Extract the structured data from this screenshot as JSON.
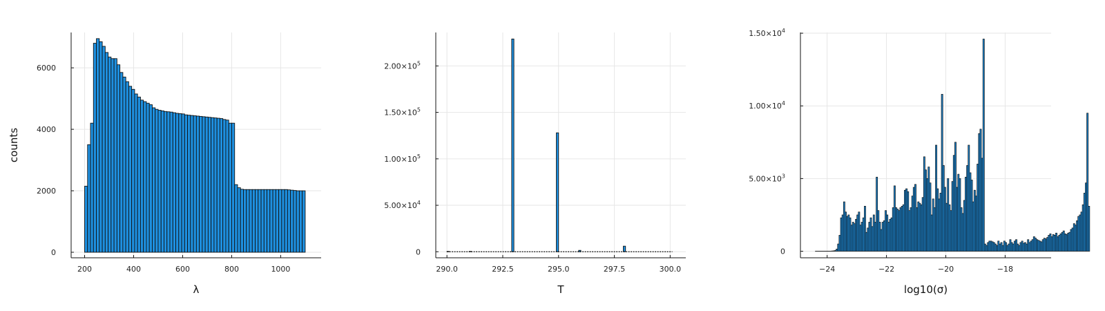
{
  "chart_data": [
    {
      "type": "bar",
      "xlabel": "λ",
      "ylabel": "counts",
      "xlim": [
        145,
        1165
      ],
      "ylim": [
        -180,
        7150
      ],
      "xticks": [
        200,
        400,
        600,
        800,
        1000
      ],
      "xtick_labels": [
        "200",
        "400",
        "600",
        "800",
        "1000"
      ],
      "yticks": [
        0,
        2000,
        4000,
        6000
      ],
      "ytick_labels": [
        "0",
        "2000",
        "4000",
        "6000"
      ],
      "grid": true,
      "bin_width": 12,
      "bin_starts": [
        200,
        212,
        224,
        236,
        248,
        260,
        272,
        284,
        296,
        308,
        320,
        332,
        344,
        356,
        368,
        380,
        392,
        404,
        416,
        428,
        440,
        452,
        464,
        476,
        488,
        500,
        512,
        524,
        536,
        548,
        560,
        572,
        584,
        596,
        608,
        620,
        632,
        644,
        656,
        668,
        680,
        692,
        704,
        716,
        728,
        740,
        752,
        764,
        776,
        788,
        800,
        812,
        824,
        836,
        848,
        860,
        872,
        884,
        896,
        908,
        920,
        932,
        944,
        956,
        968,
        980,
        992,
        1004,
        1016,
        1028,
        1040,
        1052,
        1064,
        1076,
        1088
      ],
      "values": [
        2150,
        3500,
        4200,
        6800,
        6950,
        6850,
        6700,
        6500,
        6350,
        6300,
        6300,
        6100,
        5850,
        5700,
        5550,
        5400,
        5300,
        5150,
        5050,
        4950,
        4900,
        4850,
        4800,
        4700,
        4650,
        4620,
        4600,
        4580,
        4570,
        4560,
        4540,
        4520,
        4510,
        4500,
        4470,
        4460,
        4450,
        4440,
        4430,
        4420,
        4410,
        4400,
        4390,
        4380,
        4370,
        4360,
        4350,
        4320,
        4300,
        4200,
        4200,
        2200,
        2100,
        2050,
        2040,
        2040,
        2040,
        2040,
        2040,
        2040,
        2040,
        2040,
        2040,
        2040,
        2040,
        2040,
        2040,
        2040,
        2040,
        2030,
        2020,
        2010,
        2000,
        2000,
        2000
      ]
    },
    {
      "type": "bar",
      "xlabel": "T",
      "ylabel": "",
      "xlim": [
        289.5,
        300.7
      ],
      "ylim": [
        -6500,
        236000
      ],
      "xticks": [
        290.0,
        292.5,
        295.0,
        297.5,
        300.0
      ],
      "xtick_labels": [
        "290.0",
        "292.5",
        "295.0",
        "297.5",
        "300.0"
      ],
      "yticks": [
        0,
        50000,
        100000,
        150000,
        200000
      ],
      "ytick_labels": [
        {
          "base": "0",
          "exp": ""
        },
        {
          "base": "5.00×10",
          "exp": "4"
        },
        {
          "base": "1.00×10",
          "exp": "5"
        },
        {
          "base": "1.50×10",
          "exp": "5"
        },
        {
          "base": "2.00×10",
          "exp": "5"
        }
      ],
      "grid": true,
      "bin_width": 0.1,
      "bin_starts": [
        290.0,
        291.0,
        292.9,
        294.9,
        295.9,
        297.9
      ],
      "values": [
        400,
        400,
        229000,
        128000,
        1500,
        6000
      ],
      "baseline_range": [
        290.0,
        300.1
      ]
    },
    {
      "type": "bar",
      "xlabel": "log10(σ)",
      "ylabel": "",
      "xlim": [
        -24.9,
        -16.45
      ],
      "ylim": [
        -450,
        15050
      ],
      "xticks": [
        -24,
        -22,
        -20,
        -18
      ],
      "xtick_labels": [
        "−24",
        "−22",
        "−20",
        "−18"
      ],
      "yticks": [
        0,
        5000,
        10000,
        15000
      ],
      "ytick_labels": [
        {
          "base": "0",
          "exp": ""
        },
        {
          "base": "5.00×10",
          "exp": "3"
        },
        {
          "base": "1.00×10",
          "exp": "4"
        },
        {
          "base": "1.50×10",
          "exp": "4"
        }
      ],
      "grid": true,
      "bin_start": -24.4,
      "bin_width": 0.05,
      "values": [
        10,
        10,
        10,
        10,
        10,
        10,
        10,
        10,
        10,
        10,
        10,
        20,
        30,
        50,
        150,
        500,
        1100,
        2300,
        2500,
        3400,
        2700,
        2400,
        2500,
        2300,
        1800,
        2000,
        1900,
        2200,
        2500,
        2700,
        1800,
        2000,
        2300,
        3100,
        1300,
        1600,
        2000,
        2300,
        1700,
        2500,
        2000,
        5100,
        2800,
        2000,
        1500,
        2000,
        2100,
        2800,
        2500,
        2000,
        2200,
        2300,
        3000,
        4500,
        3000,
        2900,
        2800,
        3000,
        3100,
        3200,
        4200,
        4300,
        4100,
        2800,
        3000,
        3800,
        4400,
        4600,
        3000,
        3400,
        3300,
        3200,
        3700,
        6500,
        5600,
        5000,
        5800,
        4700,
        2500,
        3600,
        3000,
        7300,
        4300,
        3600,
        4000,
        10800,
        5900,
        4400,
        3300,
        5000,
        3200,
        2800,
        4800,
        6600,
        7500,
        4400,
        5300,
        5000,
        3000,
        2600,
        3500,
        5100,
        5900,
        7300,
        5400,
        4900,
        3400,
        4200,
        3800,
        6000,
        8100,
        8400,
        6400,
        14600,
        500,
        400,
        600,
        700,
        700,
        650,
        600,
        500,
        400,
        700,
        500,
        600,
        400,
        700,
        600,
        400,
        500,
        800,
        600,
        500,
        700,
        800,
        500,
        400,
        600,
        700,
        550,
        600,
        500,
        800,
        600,
        700,
        800,
        1000,
        900,
        800,
        750,
        700,
        650,
        800,
        900,
        850,
        950,
        1100,
        1200,
        1000,
        1150,
        1100,
        1250,
        1000,
        1100,
        1200,
        1300,
        1400,
        1200,
        1150,
        1250,
        1300,
        1500,
        1600,
        1900,
        1800,
        2100,
        2400,
        2500,
        2700,
        3200,
        4000,
        4700,
        9500,
        3100
      ]
    }
  ]
}
